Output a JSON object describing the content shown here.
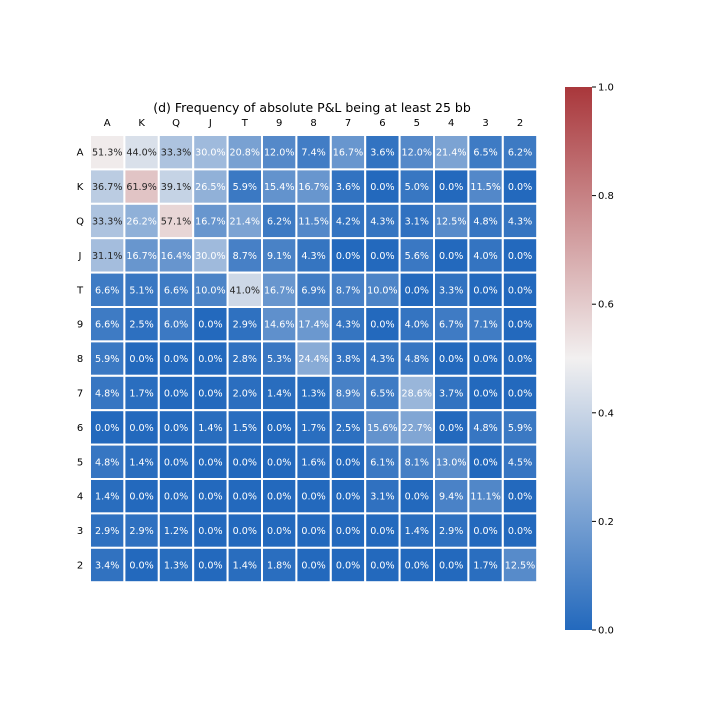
{
  "chart_data": {
    "type": "heatmap",
    "title": "(d) Frequency of absolute P&L being at least 25 bb",
    "columns": [
      "A",
      "K",
      "Q",
      "J",
      "T",
      "9",
      "8",
      "7",
      "6",
      "5",
      "4",
      "3",
      "2"
    ],
    "rows": [
      "A",
      "K",
      "Q",
      "J",
      "T",
      "9",
      "8",
      "7",
      "6",
      "5",
      "4",
      "3",
      "2"
    ],
    "values": [
      [
        0.513,
        0.44,
        0.333,
        0.3,
        0.208,
        0.12,
        0.074,
        0.167,
        0.036,
        0.12,
        0.214,
        0.065,
        0.062
      ],
      [
        0.367,
        0.619,
        0.391,
        0.265,
        0.059,
        0.154,
        0.167,
        0.036,
        0.0,
        0.05,
        0.0,
        0.115,
        0.0
      ],
      [
        0.333,
        0.262,
        0.571,
        0.167,
        0.214,
        0.062,
        0.115,
        0.042,
        0.043,
        0.031,
        0.125,
        0.048,
        0.043
      ],
      [
        0.311,
        0.167,
        0.164,
        0.3,
        0.087,
        0.091,
        0.043,
        0.0,
        0.0,
        0.056,
        0.0,
        0.04,
        0.0
      ],
      [
        0.066,
        0.051,
        0.066,
        0.1,
        0.41,
        0.167,
        0.069,
        0.087,
        0.1,
        0.0,
        0.033,
        0.0,
        0.0
      ],
      [
        0.066,
        0.025,
        0.06,
        0.0,
        0.029,
        0.146,
        0.174,
        0.043,
        0.0,
        0.04,
        0.067,
        0.071,
        0.0
      ],
      [
        0.059,
        0.0,
        0.0,
        0.0,
        0.028,
        0.053,
        0.244,
        0.038,
        0.043,
        0.048,
        0.0,
        0.0,
        0.0
      ],
      [
        0.048,
        0.017,
        0.0,
        0.0,
        0.02,
        0.014,
        0.013,
        0.089,
        0.065,
        0.286,
        0.037,
        0.0,
        0.0
      ],
      [
        0.0,
        0.0,
        0.0,
        0.014,
        0.015,
        0.0,
        0.017,
        0.025,
        0.156,
        0.227,
        0.0,
        0.048,
        0.059
      ],
      [
        0.048,
        0.014,
        0.0,
        0.0,
        0.0,
        0.0,
        0.016,
        0.0,
        0.061,
        0.081,
        0.13,
        0.0,
        0.045
      ],
      [
        0.014,
        0.0,
        0.0,
        0.0,
        0.0,
        0.0,
        0.0,
        0.0,
        0.031,
        0.0,
        0.094,
        0.111,
        0.0
      ],
      [
        0.029,
        0.029,
        0.012,
        0.0,
        0.0,
        0.0,
        0.0,
        0.0,
        0.0,
        0.014,
        0.029,
        0.0,
        0.0
      ],
      [
        0.034,
        0.0,
        0.013,
        0.0,
        0.014,
        0.018,
        0.0,
        0.0,
        0.0,
        0.0,
        0.0,
        0.017,
        0.125
      ]
    ],
    "cell_labels": [
      [
        "51.3%",
        "44.0%",
        "33.3%",
        "30.0%",
        "20.8%",
        "12.0%",
        "7.4%",
        "16.7%",
        "3.6%",
        "12.0%",
        "21.4%",
        "6.5%",
        "6.2%"
      ],
      [
        "36.7%",
        "61.9%",
        "39.1%",
        "26.5%",
        "5.9%",
        "15.4%",
        "16.7%",
        "3.6%",
        "0.0%",
        "5.0%",
        "0.0%",
        "11.5%",
        "0.0%"
      ],
      [
        "33.3%",
        "26.2%",
        "57.1%",
        "16.7%",
        "21.4%",
        "6.2%",
        "11.5%",
        "4.2%",
        "4.3%",
        "3.1%",
        "12.5%",
        "4.8%",
        "4.3%"
      ],
      [
        "31.1%",
        "16.7%",
        "16.4%",
        "30.0%",
        "8.7%",
        "9.1%",
        "4.3%",
        "0.0%",
        "0.0%",
        "5.6%",
        "0.0%",
        "4.0%",
        "0.0%"
      ],
      [
        "6.6%",
        "5.1%",
        "6.6%",
        "10.0%",
        "41.0%",
        "16.7%",
        "6.9%",
        "8.7%",
        "10.0%",
        "0.0%",
        "3.3%",
        "0.0%",
        "0.0%"
      ],
      [
        "6.6%",
        "2.5%",
        "6.0%",
        "0.0%",
        "2.9%",
        "14.6%",
        "17.4%",
        "4.3%",
        "0.0%",
        "4.0%",
        "6.7%",
        "7.1%",
        "0.0%"
      ],
      [
        "5.9%",
        "0.0%",
        "0.0%",
        "0.0%",
        "2.8%",
        "5.3%",
        "24.4%",
        "3.8%",
        "4.3%",
        "4.8%",
        "0.0%",
        "0.0%",
        "0.0%"
      ],
      [
        "4.8%",
        "1.7%",
        "0.0%",
        "0.0%",
        "2.0%",
        "1.4%",
        "1.3%",
        "8.9%",
        "6.5%",
        "28.6%",
        "3.7%",
        "0.0%",
        "0.0%"
      ],
      [
        "0.0%",
        "0.0%",
        "0.0%",
        "1.4%",
        "1.5%",
        "0.0%",
        "1.7%",
        "2.5%",
        "15.6%",
        "22.7%",
        "0.0%",
        "4.8%",
        "5.9%"
      ],
      [
        "4.8%",
        "1.4%",
        "0.0%",
        "0.0%",
        "0.0%",
        "0.0%",
        "1.6%",
        "0.0%",
        "6.1%",
        "8.1%",
        "13.0%",
        "0.0%",
        "4.5%"
      ],
      [
        "1.4%",
        "0.0%",
        "0.0%",
        "0.0%",
        "0.0%",
        "0.0%",
        "0.0%",
        "0.0%",
        "3.1%",
        "0.0%",
        "9.4%",
        "11.1%",
        "0.0%"
      ],
      [
        "2.9%",
        "2.9%",
        "1.2%",
        "0.0%",
        "0.0%",
        "0.0%",
        "0.0%",
        "0.0%",
        "0.0%",
        "1.4%",
        "2.9%",
        "0.0%",
        "0.0%"
      ],
      [
        "3.4%",
        "0.0%",
        "1.3%",
        "0.0%",
        "1.4%",
        "1.8%",
        "0.0%",
        "0.0%",
        "0.0%",
        "0.0%",
        "0.0%",
        "1.7%",
        "12.5%"
      ]
    ],
    "colorbar": {
      "min": 0.0,
      "max": 1.0,
      "ticks": [
        0.0,
        0.2,
        0.4,
        0.6,
        0.8,
        1.0
      ],
      "tick_labels": [
        "0.0",
        "0.2",
        "0.4",
        "0.6",
        "0.8",
        "1.0"
      ],
      "colormap": "vlag",
      "color_low": "#2369bd",
      "color_mid": "#f2f0f0",
      "color_high": "#a9373b"
    },
    "grid": false,
    "legend": "colorbar-right",
    "cell_border_color": "#ffffff"
  }
}
